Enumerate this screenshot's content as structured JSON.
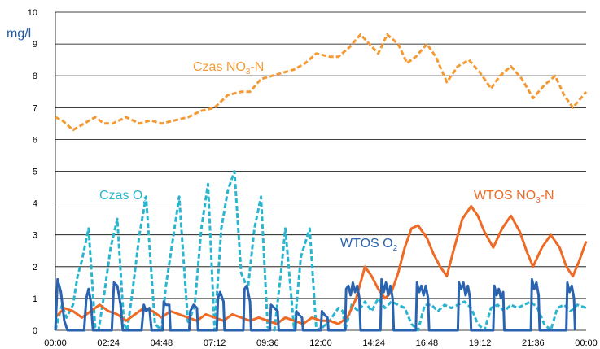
{
  "chart_data": {
    "type": "line",
    "ylabel": "mg/l",
    "ylim": [
      0,
      10
    ],
    "yticks": [
      "0",
      "1",
      "2",
      "3",
      "4",
      "5",
      "6",
      "7",
      "8",
      "9",
      "10"
    ],
    "x_ticks": [
      "00:00",
      "02:24",
      "04:48",
      "07:12",
      "09:36",
      "12:00",
      "14:24",
      "16:48",
      "19:12",
      "21:36",
      "00:00"
    ],
    "xlim_hours": [
      0,
      24
    ],
    "grid": "horizontal",
    "series": [
      {
        "key": "czas_no3",
        "color": "#f39a35",
        "dashed": true,
        "width": 3,
        "label_parts": [
          "Czas NO",
          "3",
          "-N"
        ],
        "x": [
          0,
          0.3,
          0.8,
          1.3,
          1.8,
          2.2,
          2.6,
          3.2,
          3.8,
          4.3,
          4.8,
          5.4,
          6.0,
          6.6,
          7.2,
          7.8,
          8.4,
          8.8,
          9.3,
          9.8,
          10.3,
          10.8,
          11.3,
          11.8,
          12.4,
          12.8,
          13.3,
          13.8,
          14.2,
          14.6,
          15.0,
          15.5,
          15.9,
          16.3,
          16.8,
          17.2,
          17.7,
          18.2,
          18.7,
          19.2,
          19.7,
          20.1,
          20.6,
          21.1,
          21.6,
          22.1,
          22.6,
          23.0,
          23.4,
          24.0
        ],
        "y": [
          6.7,
          6.6,
          6.3,
          6.5,
          6.7,
          6.5,
          6.5,
          6.7,
          6.5,
          6.6,
          6.5,
          6.6,
          6.7,
          6.9,
          7.0,
          7.4,
          7.5,
          7.5,
          7.9,
          8.0,
          8.1,
          8.2,
          8.4,
          8.7,
          8.6,
          8.6,
          8.9,
          9.3,
          9.0,
          8.7,
          9.3,
          9.0,
          8.4,
          8.6,
          9.0,
          8.6,
          7.8,
          8.3,
          8.5,
          8.1,
          7.6,
          8.0,
          8.3,
          7.9,
          7.3,
          7.7,
          8.0,
          7.4,
          7.0,
          7.5
        ]
      },
      {
        "key": "czas_o2",
        "color": "#29b5cf",
        "dashed": true,
        "width": 3,
        "label_parts": [
          "Czas O",
          "2",
          ""
        ],
        "x": [
          0,
          0.3,
          0.5,
          0.8,
          1.0,
          1.2,
          1.5,
          1.8,
          1.95,
          2.2,
          2.5,
          2.8,
          3.1,
          3.25,
          3.5,
          3.8,
          4.1,
          4.5,
          4.8,
          5.0,
          5.3,
          5.6,
          6.0,
          6.3,
          6.6,
          6.9,
          7.2,
          7.5,
          7.8,
          8.1,
          8.4,
          8.7,
          9.0,
          9.3,
          9.6,
          9.9,
          10.2,
          10.4,
          10.8,
          11.1,
          11.5,
          11.8,
          12.1,
          12.4,
          12.8,
          13.0,
          13.1,
          13.4,
          13.7,
          14.0,
          14.3,
          14.6,
          14.9,
          15.2,
          15.5,
          15.8,
          16.1,
          16.4,
          16.7,
          17.0,
          17.3,
          17.6,
          17.9,
          18.2,
          18.5,
          18.8,
          19.1,
          19.4,
          19.7,
          20.0,
          20.3,
          20.6,
          20.9,
          21.2,
          21.5,
          21.8,
          22.1,
          22.4,
          22.7,
          23.0,
          23.3,
          23.6,
          24.0
        ],
        "y": [
          0.0,
          0.8,
          0.4,
          0.8,
          1.7,
          2.2,
          3.2,
          0.1,
          0.0,
          1.1,
          2.6,
          3.5,
          0.2,
          0.0,
          1.3,
          3.0,
          4.2,
          0.2,
          0.0,
          1.4,
          2.8,
          4.2,
          0.2,
          0.8,
          3.2,
          4.6,
          0.0,
          3.2,
          4.4,
          5.0,
          1.8,
          1.3,
          3.2,
          4.2,
          0.1,
          0.0,
          1.8,
          3.2,
          0.0,
          2.3,
          3.2,
          0.0,
          0.1,
          0.3,
          0.7,
          0.6,
          0.0,
          0.8,
          0.6,
          0.9,
          0.6,
          1.0,
          0.7,
          0.9,
          0.8,
          0.7,
          0.2,
          0.0,
          0.8,
          0.8,
          0.6,
          0.8,
          0.7,
          0.8,
          0.9,
          0.7,
          0.2,
          0.0,
          0.7,
          0.8,
          0.6,
          0.8,
          0.7,
          0.8,
          0.9,
          0.7,
          0.2,
          0.0,
          0.7,
          0.8,
          0.6,
          0.8,
          0.7
        ]
      },
      {
        "key": "wtos_no3",
        "color": "#ee6a25",
        "dashed": false,
        "width": 3,
        "label_parts": [
          "WTOS NO",
          "3",
          "-N"
        ],
        "x": [
          0,
          0.4,
          0.8,
          1.2,
          1.6,
          2.0,
          2.4,
          2.8,
          3.2,
          3.6,
          4.0,
          4.4,
          4.8,
          5.2,
          5.6,
          6.0,
          6.4,
          6.8,
          7.2,
          7.6,
          8.0,
          8.4,
          8.8,
          9.2,
          9.6,
          10.0,
          10.4,
          10.8,
          11.2,
          11.6,
          12.0,
          12.4,
          12.8,
          13.2,
          13.6,
          14.0,
          14.3,
          14.6,
          14.9,
          15.2,
          15.5,
          15.8,
          16.1,
          16.4,
          16.8,
          17.1,
          17.4,
          17.7,
          18.0,
          18.4,
          18.8,
          19.1,
          19.4,
          19.8,
          20.2,
          20.6,
          21.0,
          21.3,
          21.6,
          22.0,
          22.4,
          22.8,
          23.1,
          23.4,
          23.7,
          24.0
        ],
        "y": [
          0.4,
          0.7,
          0.6,
          0.4,
          0.6,
          0.8,
          0.6,
          0.5,
          0.3,
          0.5,
          0.7,
          0.6,
          0.4,
          0.6,
          0.5,
          0.4,
          0.3,
          0.5,
          0.4,
          0.3,
          0.5,
          0.4,
          0.3,
          0.4,
          0.3,
          0.2,
          0.4,
          0.3,
          0.2,
          0.4,
          0.3,
          0.3,
          0.2,
          0.4,
          1.0,
          2.0,
          1.7,
          1.3,
          1.0,
          1.2,
          1.8,
          2.6,
          3.2,
          3.3,
          2.9,
          2.4,
          2.0,
          1.7,
          2.5,
          3.5,
          3.9,
          3.6,
          3.1,
          2.6,
          3.2,
          3.6,
          3.1,
          2.5,
          2.0,
          2.6,
          3.0,
          2.6,
          2.0,
          1.7,
          2.2,
          2.8
        ]
      },
      {
        "key": "wtos_o2",
        "color": "#2a63b0",
        "dashed": false,
        "width": 3,
        "label_parts": [
          "WTOS O",
          "2",
          ""
        ],
        "x": [
          0,
          0.1,
          0.25,
          0.4,
          0.55,
          1.3,
          1.4,
          1.5,
          1.6,
          1.7,
          2.55,
          2.65,
          2.8,
          2.95,
          3.05,
          3.9,
          4.0,
          4.1,
          4.25,
          4.35,
          4.85,
          4.9,
          5.0,
          5.15,
          5.2,
          6.05,
          6.1,
          6.25,
          6.4,
          6.45,
          7.3,
          7.35,
          7.45,
          7.6,
          7.65,
          8.5,
          8.55,
          8.65,
          8.8,
          8.85,
          9.7,
          9.75,
          9.9,
          10.05,
          10.1,
          10.85,
          10.9,
          11.0,
          11.15,
          11.2,
          12.0,
          12.05,
          12.15,
          12.3,
          12.35,
          13.1,
          13.15,
          13.25,
          13.35,
          13.45,
          13.55,
          13.65,
          13.75,
          13.8,
          14.7,
          14.75,
          14.85,
          14.95,
          15.05,
          15.15,
          15.25,
          15.3,
          16.3,
          16.35,
          16.45,
          16.55,
          16.65,
          16.75,
          16.85,
          16.9,
          18.2,
          18.25,
          18.35,
          18.45,
          18.55,
          18.65,
          18.75,
          18.8,
          19.8,
          19.85,
          19.95,
          20.05,
          20.15,
          20.25,
          20.3,
          21.5,
          21.55,
          21.65,
          21.75,
          21.85,
          21.9,
          23.1,
          23.15,
          23.25,
          23.35,
          23.45,
          23.5
        ],
        "y": [
          0.0,
          1.6,
          1.2,
          0.3,
          0.0,
          0.0,
          1.0,
          1.3,
          0.9,
          0.0,
          0.0,
          1.5,
          1.4,
          0.8,
          0.0,
          0.0,
          0.8,
          0.6,
          0.7,
          0.0,
          0.0,
          0.9,
          0.8,
          0.8,
          0.0,
          0.0,
          0.6,
          0.8,
          0.7,
          0.0,
          0.0,
          1.0,
          1.2,
          0.9,
          0.0,
          0.0,
          1.3,
          1.4,
          0.9,
          0.0,
          0.0,
          0.8,
          0.7,
          0.6,
          0.0,
          0.0,
          0.6,
          0.5,
          0.4,
          0.0,
          0.0,
          0.6,
          0.5,
          0.4,
          0.0,
          0.0,
          1.3,
          1.4,
          1.1,
          1.5,
          1.2,
          1.4,
          1.0,
          0.0,
          0.0,
          1.6,
          1.2,
          1.5,
          1.1,
          1.4,
          1.0,
          0.0,
          0.0,
          1.5,
          1.2,
          1.4,
          1.1,
          1.4,
          1.0,
          0.0,
          0.0,
          1.5,
          1.3,
          1.5,
          1.1,
          1.4,
          1.0,
          0.0,
          0.0,
          1.4,
          1.1,
          1.3,
          1.0,
          1.2,
          0.0,
          0.0,
          1.6,
          1.3,
          1.5,
          1.1,
          0.0,
          0.0,
          1.5,
          1.2,
          1.4,
          1.0,
          0.0
        ]
      }
    ]
  }
}
